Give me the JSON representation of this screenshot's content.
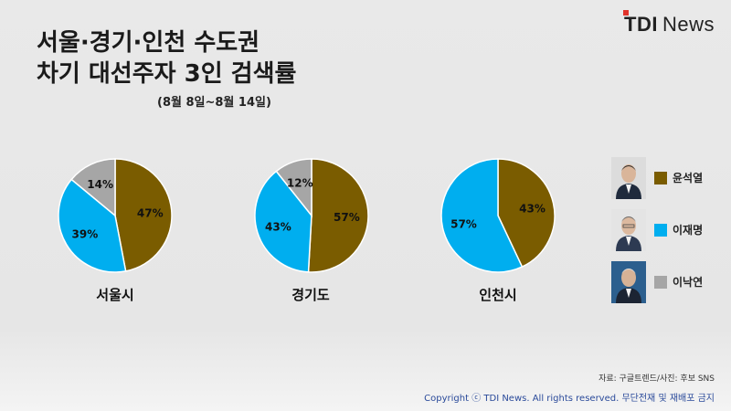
{
  "logo": {
    "brand": "TDI",
    "suffix": "News"
  },
  "title_lines": [
    "서울·경기·인천 수도권",
    "차기 대선주자 3인 검색률"
  ],
  "subtitle": "(8월 8일~8월 14일)",
  "chart_data": [
    {
      "type": "pie",
      "label": "서울시",
      "slices": [
        {
          "name": "윤석열",
          "value": 47
        },
        {
          "name": "이재명",
          "value": 39
        },
        {
          "name": "이낙연",
          "value": 14
        }
      ]
    },
    {
      "type": "pie",
      "label": "경기도",
      "slices": [
        {
          "name": "윤석열",
          "value": 57
        },
        {
          "name": "이재명",
          "value": 43
        },
        {
          "name": "이낙연",
          "value": 12
        }
      ]
    },
    {
      "type": "pie",
      "label": "인천시",
      "slices": [
        {
          "name": "윤석열",
          "value": 43
        },
        {
          "name": "이재명",
          "value": 57
        }
      ]
    }
  ],
  "legend": [
    {
      "name": "윤석열",
      "color": "#7a5c00",
      "photo": "candidate-photo"
    },
    {
      "name": "이재명",
      "color": "#00aeef",
      "photo": "candidate-photo"
    },
    {
      "name": "이낙연",
      "color": "#a6a6a6",
      "photo": "candidate-photo"
    }
  ],
  "source": "자료: 구글트렌드/사진: 후보 SNS",
  "copyright": "Copyright ⓒ TDI News. All rights reserved. 무단전재 및 재배포 금지"
}
